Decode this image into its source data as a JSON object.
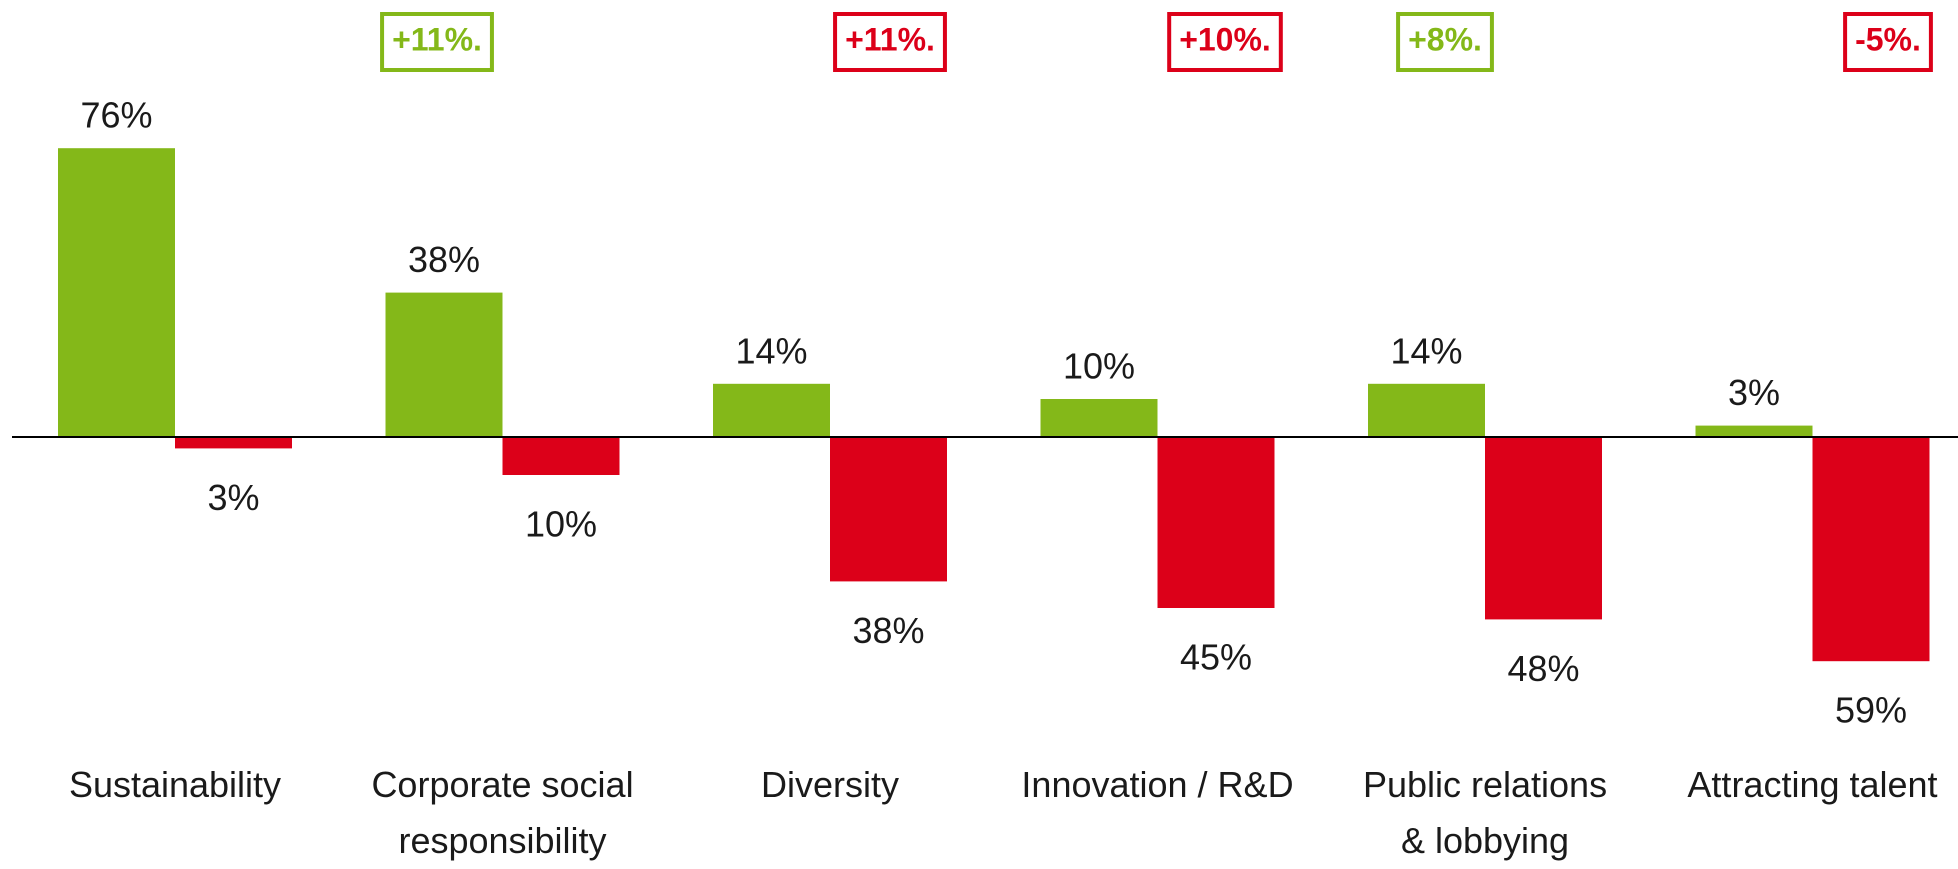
{
  "chart_data": {
    "type": "bar",
    "categories": [
      "Sustainability",
      "Corporate social\nresponsibility",
      "Diversity",
      "Innovation / R&D",
      "Public relations\n& lobbying",
      "Attracting talent"
    ],
    "series": [
      {
        "color": "#84b819",
        "values": [
          76,
          38,
          14,
          10,
          14,
          3
        ],
        "value_labels": [
          "76%",
          "38%",
          "14%",
          "10%",
          "14%",
          "3%"
        ]
      },
      {
        "color": "#dc0019",
        "values": [
          -3,
          -10,
          -38,
          -45,
          -48,
          -59
        ],
        "value_labels": [
          "3%",
          "10%",
          "38%",
          "45%",
          "48%",
          "59%"
        ]
      }
    ],
    "annotations": [
      {
        "text": "+11%.",
        "color": "#84b819"
      },
      {
        "text": "+11%.",
        "color": "#dc0019"
      },
      {
        "text": "+10%.",
        "color": "#dc0019"
      },
      {
        "text": "+8%.",
        "color": "#84b819"
      },
      {
        "text": "-5%.",
        "color": "#dc0019"
      }
    ],
    "ylim": [
      -70,
      85
    ]
  }
}
